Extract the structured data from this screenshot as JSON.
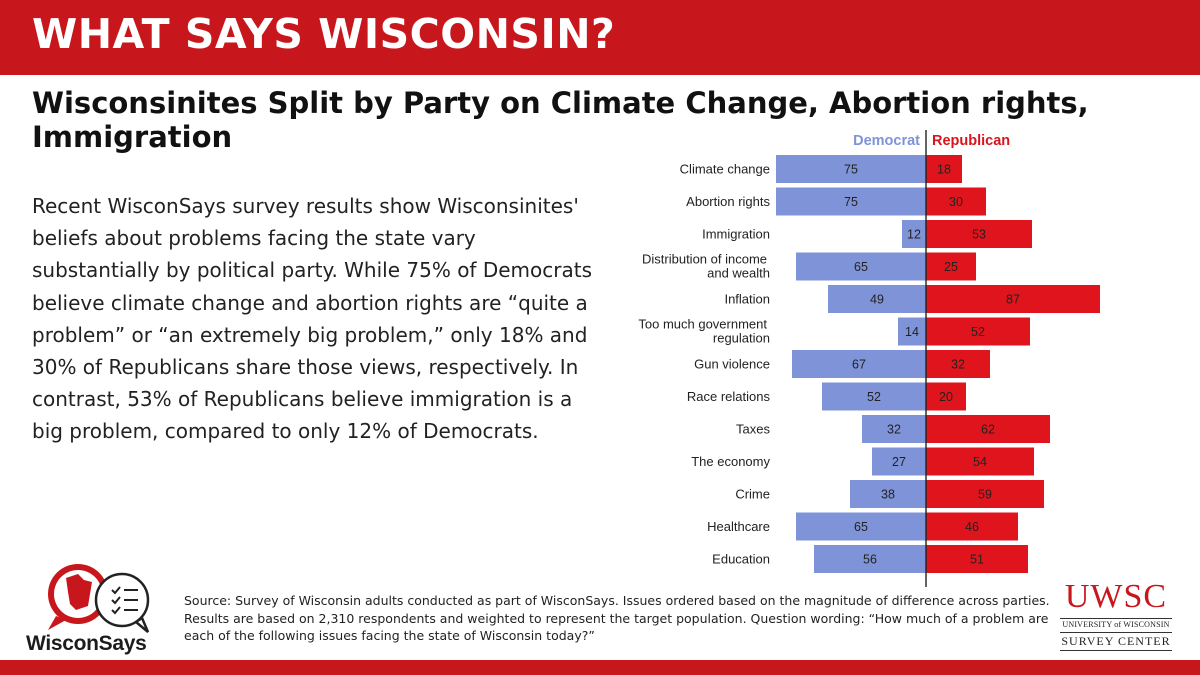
{
  "banner": {
    "title": "WHAT SAYS WISCONSIN?"
  },
  "headline": "Wisconsinites Split by Party on Climate Change, Abortion rights, Immigration",
  "body": "Recent WisconSays survey results show Wisconsinites' beliefs about problems facing the state vary substantially by political party. While 75% of Democrats believe climate change and abortion rights are “quite a problem” or “an extremely big problem,” only 18% and 30% of Republicans share those views, respectively. In contrast, 53% of Republicans believe immigration is a big problem, compared to only 12% of Democrats.",
  "source": "Source: Survey of Wisconsin adults conducted as part of WisconSays. Issues ordered based on the magnitude of difference across parties. Results are based on 2,310 respondents and weighted to represent the target population. Question wording: “How much of a problem are each of the following issues facing the state of Wisconsin today?”",
  "logo": {
    "wordmark": "WisconSays"
  },
  "uwsc": {
    "abbr": "UWSC",
    "line1": "UNIVERSITY of WISCONSIN",
    "line2": "SURVEY CENTER"
  },
  "colors": {
    "brand_red": "#c8161d",
    "democrat": "#7e93d8",
    "republican": "#e0141d"
  },
  "chart_data": {
    "type": "bar",
    "orientation": "diverging-horizontal",
    "categories": [
      "Climate change",
      "Abortion rights",
      "Immigration",
      "Distribution of income and wealth",
      "Inflation",
      "Too much government regulation",
      "Gun violence",
      "Race relations",
      "Taxes",
      "The economy",
      "Crime",
      "Healthcare",
      "Education"
    ],
    "series": [
      {
        "name": "Democrat",
        "values": [
          75,
          75,
          12,
          65,
          49,
          14,
          67,
          52,
          32,
          27,
          38,
          65,
          56
        ]
      },
      {
        "name": "Republican",
        "values": [
          18,
          30,
          53,
          25,
          87,
          52,
          32,
          20,
          62,
          54,
          59,
          46,
          51
        ]
      }
    ],
    "legend": [
      "Democrat",
      "Republican"
    ],
    "legend_position": "top",
    "xlim": [
      0,
      100
    ],
    "grid": false
  }
}
